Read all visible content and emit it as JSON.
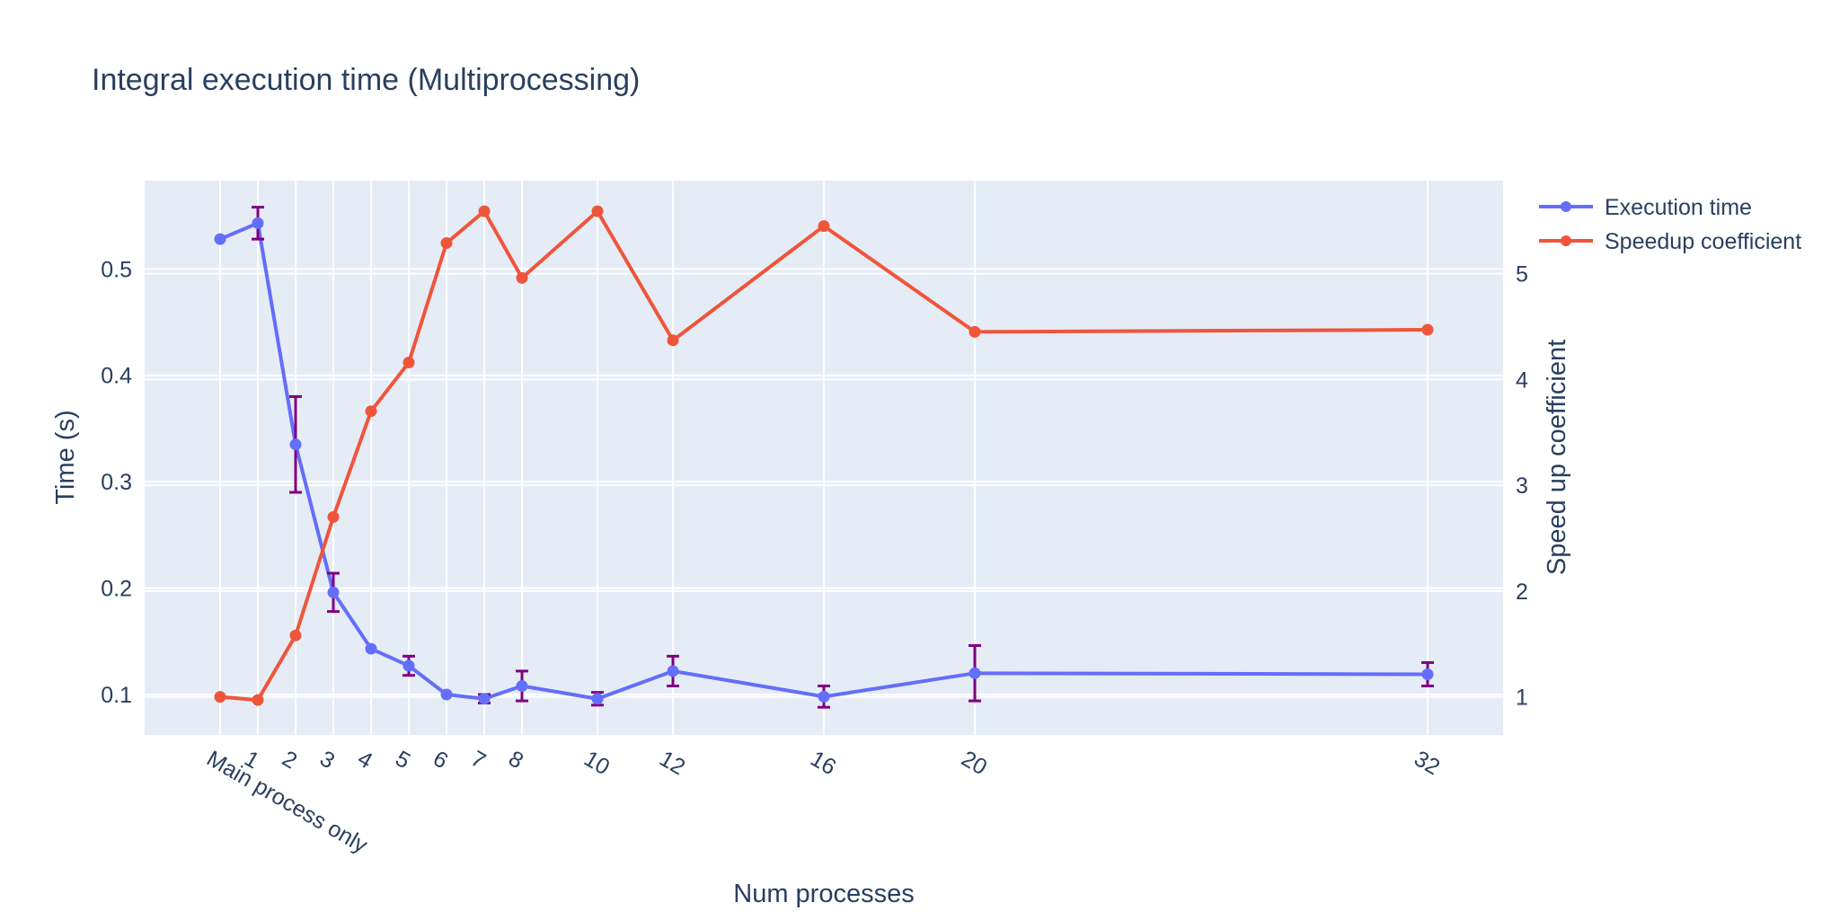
{
  "chart_data": {
    "type": "line",
    "title": "Integral execution time (Multiprocessing)",
    "xlabel": "Num processes",
    "ylabel": "Time (s)",
    "y2label": "Speed up coefficient",
    "x_categories": [
      "Main process only",
      "1",
      "2",
      "3",
      "4",
      "5",
      "6",
      "7",
      "8",
      "10",
      "12",
      "16",
      "20",
      "32"
    ],
    "x_positions": [
      0,
      1,
      2,
      3,
      4,
      5,
      6,
      7,
      8,
      10,
      12,
      16,
      20,
      32
    ],
    "x_range": [
      -2,
      34
    ],
    "ylim": [
      0.062,
      0.583
    ],
    "y2lim": [
      0.64,
      5.88
    ],
    "yticks": [
      "0.1",
      "0.2",
      "0.3",
      "0.4",
      "0.5"
    ],
    "y2ticks": [
      "1",
      "2",
      "3",
      "4",
      "5"
    ],
    "grid": true,
    "legend_position": "top-right",
    "series": [
      {
        "name": "Execution time",
        "axis": "left",
        "color": "#636efa",
        "values": [
          0.528,
          0.543,
          0.335,
          0.196,
          0.143,
          0.127,
          0.1,
          0.096,
          0.108,
          0.096,
          0.122,
          0.098,
          0.12,
          0.119
        ],
        "error": [
          0.0,
          0.015,
          0.045,
          0.018,
          0.0,
          0.009,
          0.0,
          0.004,
          0.014,
          0.006,
          0.014,
          0.01,
          0.026,
          0.011
        ],
        "error_color": "#800080"
      },
      {
        "name": "Speedup coefficient",
        "axis": "right",
        "color": "#ef553b",
        "values": [
          1.0,
          0.97,
          1.58,
          2.7,
          3.7,
          4.16,
          5.29,
          5.59,
          4.96,
          5.59,
          4.37,
          5.45,
          4.45,
          4.47
        ]
      }
    ]
  }
}
